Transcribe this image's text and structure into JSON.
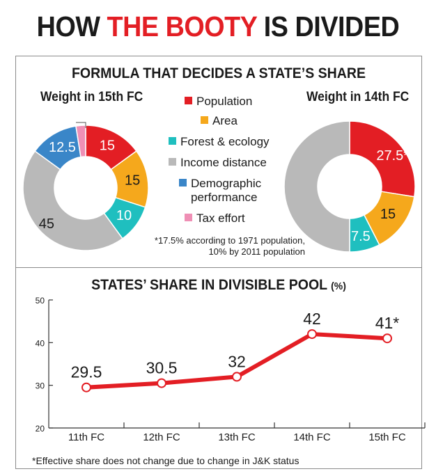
{
  "headline": {
    "part1": "HOW",
    "part2": "THE BOOTY",
    "part3": "IS DIVIDED"
  },
  "formula_title": "FORMULA THAT DECIDES A STATE’S SHARE",
  "legend": [
    {
      "label": "Population",
      "color": "#e31e24"
    },
    {
      "label": "Area",
      "color": "#f5a81c"
    },
    {
      "label": "Forest & ecology",
      "color": "#1fbfbf"
    },
    {
      "label": "Income distance",
      "color": "#b9b9b9"
    },
    {
      "label": "Demographic performance",
      "color": "#3a86c8"
    },
    {
      "label": "Tax effort",
      "color": "#ef8fb5"
    }
  ],
  "population_note": "*17.5% according to 1971 population, 10% by 2011 population",
  "chart_data": [
    {
      "type": "pie",
      "title": "Weight in 15th FC",
      "slices": [
        {
          "label": "Population",
          "value": 15,
          "display": "15",
          "color": "#e31e24"
        },
        {
          "label": "Area",
          "value": 15,
          "display": "15",
          "color": "#f5a81c"
        },
        {
          "label": "Forest & ecology",
          "value": 10,
          "display": "10",
          "color": "#1fbfbf"
        },
        {
          "label": "Income distance",
          "value": 45,
          "display": "45",
          "color": "#b9b9b9"
        },
        {
          "label": "Demographic performance",
          "value": 12.5,
          "display": "12.5",
          "color": "#3a86c8"
        },
        {
          "label": "Tax effort",
          "value": 2.5,
          "display": "2.5",
          "color": "#ef8fb5"
        }
      ]
    },
    {
      "type": "pie",
      "title": "Weight in 14th FC",
      "slices": [
        {
          "label": "Population",
          "value": 27.5,
          "display": "27.5*",
          "color": "#e31e24"
        },
        {
          "label": "Area",
          "value": 15,
          "display": "15",
          "color": "#f5a81c"
        },
        {
          "label": "Forest & ecology",
          "value": 7.5,
          "display": "7.5",
          "color": "#1fbfbf"
        },
        {
          "label": "Income distance",
          "value": 50,
          "display": "50",
          "color": "#b9b9b9"
        }
      ]
    },
    {
      "type": "line",
      "title": "STATES’ SHARE IN DIVISIBLE POOL",
      "title_unit": "(%)",
      "categories": [
        "11th FC",
        "12th FC",
        "13th FC",
        "14th FC",
        "15th FC"
      ],
      "values": [
        29.5,
        30.5,
        32,
        42,
        41
      ],
      "labels": [
        "29.5",
        "30.5",
        "32",
        "42",
        "41*"
      ],
      "ylim": [
        20,
        50
      ],
      "yticks": [
        "20",
        "30",
        "40",
        "50"
      ],
      "color": "#e31e24"
    }
  ],
  "footnote": "*Effective share does not change due to change in J&K status"
}
